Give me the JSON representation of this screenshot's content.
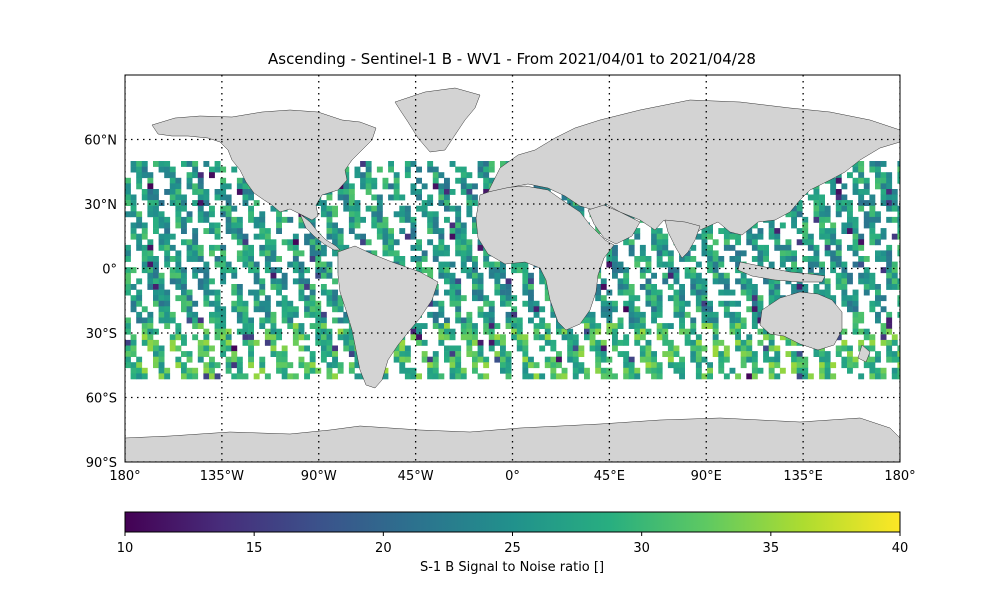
{
  "title": "Ascending - Sentinel-1 B - WV1 - From 2021/04/01 to 2021/04/28",
  "map": {
    "lon_range": [
      -180,
      180
    ],
    "lat_range": [
      -90,
      90
    ],
    "lon_ticks": [
      {
        "value": -180,
        "label": "180°"
      },
      {
        "value": -135,
        "label": "135°W"
      },
      {
        "value": -90,
        "label": "90°W"
      },
      {
        "value": -45,
        "label": "45°W"
      },
      {
        "value": 0,
        "label": "0°"
      },
      {
        "value": 45,
        "label": "45°E"
      },
      {
        "value": 90,
        "label": "90°E"
      },
      {
        "value": 135,
        "label": "135°E"
      },
      {
        "value": 180,
        "label": "180°"
      }
    ],
    "lat_ticks": [
      {
        "value": 60,
        "label": "60°N"
      },
      {
        "value": 30,
        "label": "30°N"
      },
      {
        "value": 0,
        "label": "0°"
      },
      {
        "value": -30,
        "label": "30°S"
      },
      {
        "value": -60,
        "label": "60°S"
      },
      {
        "value": -90,
        "label": "90°S"
      }
    ],
    "land_color": "#d3d3d3",
    "gridlines": "dotted",
    "data_lat_range": [
      -50,
      50
    ]
  },
  "colorbar": {
    "label": "S-1 B Signal to Noise ratio []",
    "min": 10,
    "max": 40,
    "ticks": [
      10,
      15,
      20,
      25,
      30,
      35,
      40
    ],
    "colormap": "viridis"
  }
}
